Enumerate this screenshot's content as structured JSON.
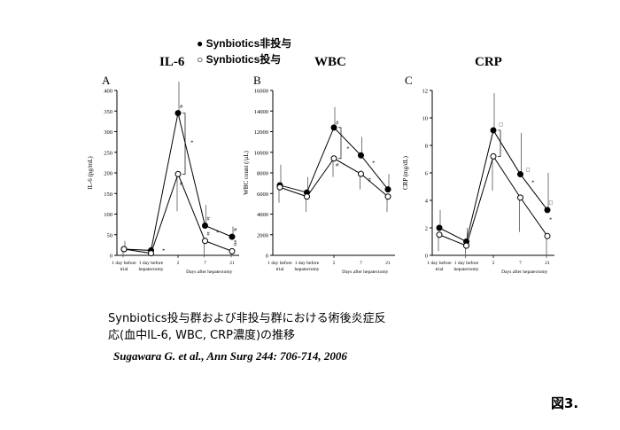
{
  "legend": {
    "filled": "Synbiotics非投与",
    "open": "Synbiotics投与"
  },
  "chart_titles": [
    "IL-6",
    "WBC",
    "CRP"
  ],
  "chart_data": [
    {
      "type": "line",
      "panel": "A",
      "ylabel": "IL-6 (pg/mL)",
      "xlabel": "Days after hepatectomy",
      "x_ticks": [
        "1 day before trial",
        "1 day before hepatectomy",
        "2",
        "7",
        "21"
      ],
      "y_ticks": [
        "0",
        "50",
        "100",
        "150",
        "200",
        "250",
        "300",
        "350",
        "400"
      ],
      "ylim": [
        0,
        400
      ],
      "series": [
        {
          "name": "Synbiotics非投与",
          "marker": "filled",
          "values": [
            15,
            12,
            345,
            72,
            45
          ],
          "err": [
            20,
            8,
            130,
            50,
            25
          ],
          "err_dir": "up"
        },
        {
          "name": "Synbiotics投与",
          "marker": "open",
          "values": [
            15,
            5,
            197,
            35,
            10
          ],
          "err": [
            20,
            6,
            90,
            40,
            15
          ],
          "err_dir": "down"
        }
      ],
      "annotations": [
        {
          "text": "#",
          "x": 2,
          "y": 357
        },
        {
          "text": "*",
          "x": 2.4,
          "y": 270
        },
        {
          "text": "#",
          "x": 2,
          "y": 170
        },
        {
          "text": "#",
          "x": 3,
          "y": 85
        },
        {
          "text": "#",
          "x": 3,
          "y": 48
        },
        {
          "text": "*",
          "x": 3.35,
          "y": 52
        },
        {
          "text": "#",
          "x": 4,
          "y": 58
        },
        {
          "text": "#",
          "x": 4,
          "y": 23
        },
        {
          "text": "*",
          "x": 4.35,
          "y": 28
        },
        {
          "text": "*",
          "x": 1.35,
          "y": 8
        }
      ]
    },
    {
      "type": "line",
      "panel": "B",
      "ylabel": "WBC count (/μL)",
      "xlabel": "Days after hepatectomy",
      "x_ticks": [
        "1 day before trial",
        "1 day before hepatectomy",
        "2",
        "7",
        "21"
      ],
      "y_ticks": [
        "0",
        "2000",
        "4000",
        "6000",
        "8000",
        "10000",
        "12000",
        "14000",
        "16000"
      ],
      "ylim": [
        0,
        16000
      ],
      "series": [
        {
          "name": "Synbiotics非投与",
          "marker": "filled",
          "values": [
            6800,
            6100,
            12400,
            9700,
            6400
          ],
          "err": [
            2000,
            1500,
            2000,
            1800,
            1500
          ],
          "err_dir": "up"
        },
        {
          "name": "Synbiotics投与",
          "marker": "open",
          "values": [
            6600,
            5700,
            9400,
            7900,
            5700
          ],
          "err": [
            1500,
            1500,
            1800,
            1500,
            1500
          ],
          "err_dir": "down"
        }
      ],
      "annotations": [
        {
          "text": "#",
          "x": 2,
          "y": 12700
        },
        {
          "text": "*",
          "x": 2.4,
          "y": 10200
        },
        {
          "text": "#",
          "x": 2,
          "y": 8600
        },
        {
          "text": "*",
          "x": 3.35,
          "y": 8800
        },
        {
          "text": "#",
          "x": 3.2,
          "y": 7200
        }
      ]
    },
    {
      "type": "line",
      "panel": "C",
      "ylabel": "CRP (mg/dL)",
      "xlabel": "Days after hepatectomy",
      "x_ticks": [
        "1 day before trial",
        "1 day before hepatectomy",
        "2",
        "7",
        "21"
      ],
      "y_ticks": [
        "0",
        "2",
        "4",
        "6",
        "8",
        "10",
        "12"
      ],
      "ylim": [
        0,
        12
      ],
      "series": [
        {
          "name": "Synbiotics非投与",
          "marker": "filled",
          "values": [
            2.0,
            1.0,
            9.1,
            5.9,
            3.3
          ],
          "err": [
            1.3,
            1.0,
            2.7,
            3.0,
            2.7
          ],
          "err_dir": "up"
        },
        {
          "name": "Synbiotics投与",
          "marker": "open",
          "values": [
            1.5,
            0.7,
            7.2,
            4.2,
            1.4
          ],
          "err": [
            1.2,
            0.9,
            2.5,
            2.5,
            1.6
          ],
          "err_dir": "down"
        }
      ],
      "annotations": [
        {
          "text": "□",
          "x": 2.15,
          "y": 9.4
        },
        {
          "text": "□",
          "x": 3.15,
          "y": 6.1
        },
        {
          "text": "*",
          "x": 3.35,
          "y": 5.2
        },
        {
          "text": "□",
          "x": 4.15,
          "y": 3.7
        },
        {
          "text": "*",
          "x": 4.35,
          "y": 2.5
        }
      ]
    }
  ],
  "caption": {
    "line1": "Synbiotics投与群および非投与群における術後炎症反",
    "line2": "応(血中IL-6, WBC, CRP濃度)の推移"
  },
  "citation": "Sugawara G. et al., Ann Surg 244: 706-714, 2006",
  "figure_label": "図3."
}
